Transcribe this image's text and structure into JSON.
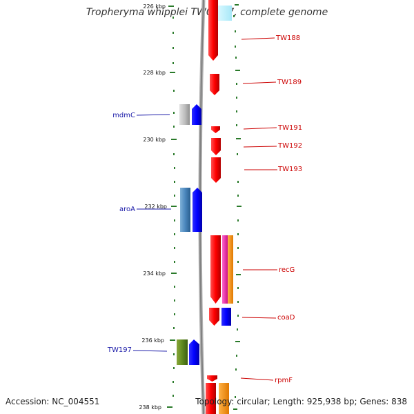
{
  "header": {
    "title": "Tropheryma whipplei TW08/27, complete genome"
  },
  "footer": {
    "accession": "Accession: NC_004551",
    "topology": "Topology: circular; Length: 925,938 bp; Genes: 838"
  },
  "colors": {
    "reverse_strand_label": "#1a1aa8",
    "forward_strand_label": "#cc0000",
    "backbone": "#888888",
    "tick": "#2a7a2a"
  },
  "ticks": [
    {
      "label": "226 kbp"
    },
    {
      "label": "228 kbp"
    },
    {
      "label": "230 kbp"
    },
    {
      "label": "232 kbp"
    },
    {
      "label": "234 kbp"
    },
    {
      "label": "236 kbp"
    },
    {
      "label": "238 kbp"
    }
  ],
  "gene_labels": {
    "left": [
      "mdmC",
      "aroA",
      "TW197"
    ],
    "right": [
      "TW188",
      "TW189",
      "TW191",
      "TW192",
      "TW193",
      "recG",
      "coaD",
      "rpmF"
    ]
  }
}
